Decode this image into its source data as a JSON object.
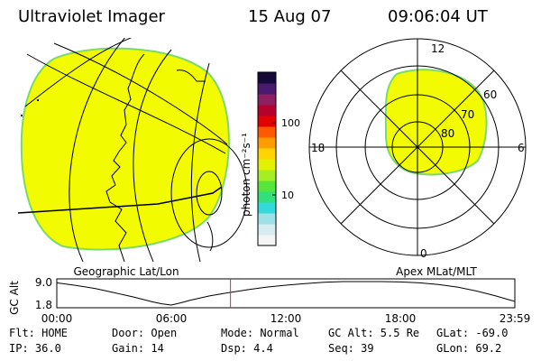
{
  "header": {
    "instrument": "Ultraviolet Imager",
    "date": "15 Aug 07",
    "time": "09:06:04 UT"
  },
  "colors": {
    "fill": "#f2fb00",
    "edge": "#7dd96a",
    "line": "#000000",
    "cursor": "#cc3333"
  },
  "left_panel": {
    "caption": "Geographic Lat/Lon"
  },
  "right_panel": {
    "caption": "Apex MLat/MLT",
    "mlt_labels": {
      "top": "12",
      "left": "18",
      "right": "6",
      "bottom": "0"
    },
    "mlat_labels": [
      "60",
      "70",
      "80"
    ]
  },
  "colorbar": {
    "unit_label": "photon cm⁻²s⁻¹",
    "tick_labels": [
      "100",
      "10"
    ],
    "tick_values": [
      100,
      10
    ],
    "range": [
      2,
      500
    ],
    "colors": [
      "#f4f4f4",
      "#d6ecf0",
      "#9fe0e6",
      "#34d9de",
      "#2fe07d",
      "#56e63b",
      "#a6ee24",
      "#e3f100",
      "#ffd400",
      "#ff9d00",
      "#ff5a00",
      "#e30000",
      "#b5002d",
      "#8d2060",
      "#4a1a70",
      "#140a3a"
    ]
  },
  "chart_data": {
    "type": "line",
    "title": "",
    "ylabel": "GC Alt",
    "xlabel": "",
    "x_ticks": [
      "00:00",
      "06:00",
      "12:00",
      "18:00",
      "23:59"
    ],
    "y_ticks": [
      "9.0",
      "1.8"
    ],
    "ylim": [
      1.8,
      9.0
    ],
    "xlim_hours": [
      0,
      24
    ],
    "current_time_hours": 9.1,
    "series": [
      {
        "x": [
          0,
          1,
          2,
          3,
          4,
          5,
          5.5,
          6,
          6.5,
          7,
          8,
          9,
          10,
          11,
          12,
          13,
          14,
          15,
          16,
          17,
          18,
          19,
          20,
          21,
          22,
          23,
          24
        ],
        "y": [
          8.6,
          7.8,
          6.9,
          5.6,
          4.3,
          2.8,
          2.2,
          1.8,
          2.5,
          3.3,
          4.6,
          5.6,
          6.5,
          7.3,
          7.9,
          8.4,
          8.8,
          9.0,
          9.0,
          9.0,
          8.9,
          8.6,
          8.1,
          7.3,
          6.1,
          4.6,
          2.9
        ]
      }
    ]
  },
  "footer": {
    "rows": [
      [
        "Flt: HOME",
        "Door: Open",
        "Mode: Normal",
        "GC Alt: 5.5 Re",
        "GLat: -69.0"
      ],
      [
        "IP: 36.0",
        "Gain: 14",
        "Dsp:    4.4",
        "Seq: 39",
        "GLon:  69.2"
      ]
    ]
  }
}
